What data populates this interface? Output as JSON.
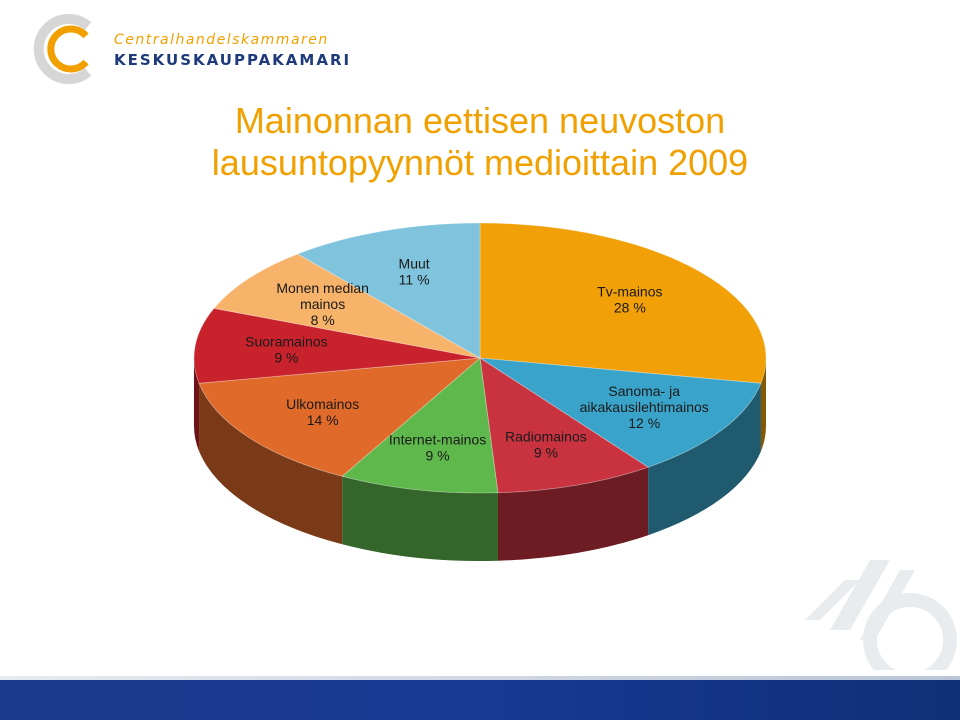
{
  "logo": {
    "line1": "Centralhandelskammaren",
    "line2": "KESKUSKAUPPAKAMARI"
  },
  "title": {
    "line1": "Mainonnan eettisen neuvoston",
    "line2": "lausuntopyynnöt medioittain 2009"
  },
  "chart_data": {
    "type": "pie",
    "title": "Mainonnan eettisen neuvoston lausuntopyynnöt medioittain 2009",
    "unit": "%",
    "slices": [
      {
        "label": "Tv-mainos",
        "value": 28,
        "value_label": "28 %",
        "color": "#f2a007"
      },
      {
        "label": "Sanoma- ja aikakausilehtimainos",
        "value": 12,
        "value_label": "12 %",
        "color": "#3aa3c9"
      },
      {
        "label": "Radiomainos",
        "value": 9,
        "value_label": "9 %",
        "color": "#c8333f"
      },
      {
        "label": "Internet-mainos",
        "value": 9,
        "value_label": "9 %",
        "color": "#5fb84c"
      },
      {
        "label": "Ulkomainos",
        "value": 14,
        "value_label": "14 %",
        "color": "#e06a2a"
      },
      {
        "label": "Suoramainos",
        "value": 9,
        "value_label": "9 %",
        "color": "#c8232c"
      },
      {
        "label": "Monen median mainos",
        "value": 8,
        "value_label": "8 %",
        "color": "#f7b36a"
      },
      {
        "label": "Muut",
        "value": 11,
        "value_label": "11 %",
        "color": "#7fc4dc"
      }
    ]
  }
}
